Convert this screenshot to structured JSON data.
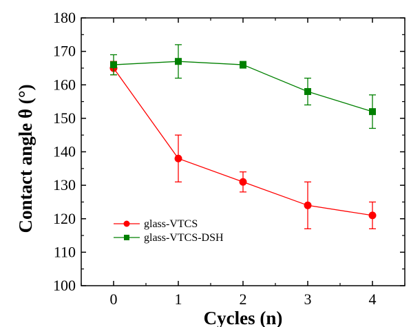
{
  "chart_data": {
    "type": "line",
    "title": "",
    "xlabel": "Cycles (n)",
    "ylabel": "Contact angle θ (°)",
    "x": [
      0,
      1,
      2,
      3,
      4
    ],
    "xlim": [
      -0.5,
      4.5
    ],
    "ylim": [
      100,
      180
    ],
    "x_ticks": [
      0,
      1,
      2,
      3,
      4
    ],
    "y_ticks": [
      100,
      110,
      120,
      130,
      140,
      150,
      160,
      170,
      180
    ],
    "grid": false,
    "legend_position": "lower-left",
    "series": [
      {
        "name": "glass-VTCS",
        "color": "#ff0000",
        "marker": "circle",
        "values": [
          165,
          138,
          131,
          124,
          121
        ],
        "errors": [
          2,
          7,
          3,
          7,
          4
        ]
      },
      {
        "name": "glass-VTCS-DSH",
        "color": "#008000",
        "marker": "square",
        "values": [
          166,
          167,
          166,
          158,
          152
        ],
        "errors": [
          3,
          5,
          1,
          4,
          5
        ]
      }
    ]
  }
}
